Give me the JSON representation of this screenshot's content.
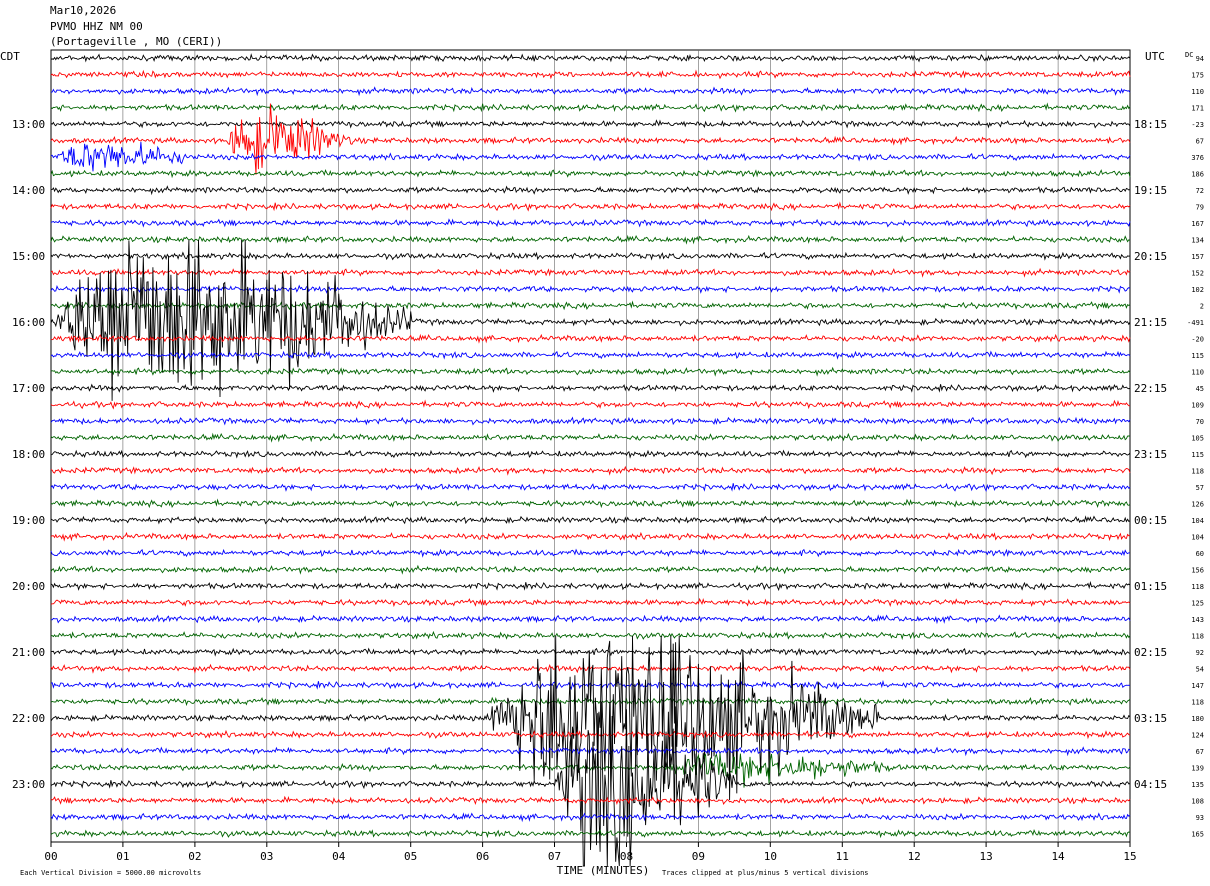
{
  "header": {
    "date": "Mar10,2026",
    "station": "PVMO HHZ NM 00",
    "location": "(Portageville , MO (CERI))"
  },
  "chart_data": {
    "type": "line",
    "title": "PVMO HHZ NM 00",
    "left_axis_label": "CDT",
    "right_axis_label": "UTC",
    "dc_label": "DC",
    "xlabel": "TIME (MINUTES)",
    "xlim": [
      0,
      15
    ],
    "x_ticks": [
      "00",
      "01",
      "02",
      "03",
      "04",
      "05",
      "06",
      "07",
      "08",
      "09",
      "10",
      "11",
      "12",
      "13",
      "14",
      "15"
    ],
    "trace_interval_minutes": 15,
    "trace_colors": [
      "#000000",
      "#ff0000",
      "#0000ff",
      "#006400"
    ],
    "left_hour_labels": [
      "13:00",
      "14:00",
      "15:00",
      "16:00",
      "17:00",
      "18:00",
      "19:00",
      "20:00",
      "21:00",
      "22:00",
      "23:00"
    ],
    "right_hour_labels": [
      "18:15",
      "19:15",
      "20:15",
      "21:15",
      "22:15",
      "23:15",
      "00:15",
      "01:15",
      "02:15",
      "03:15",
      "04:15"
    ],
    "dc_offsets": [
      "94",
      "175",
      "110",
      "171",
      "-23",
      "67",
      "376",
      "186",
      "72",
      "79",
      "167",
      "134",
      "157",
      "152",
      "102",
      "2",
      "-491",
      "-20",
      "115",
      "110",
      "45",
      "109",
      "70",
      "105",
      "115",
      "118",
      "57",
      "126",
      "104",
      "104",
      "60",
      "156",
      "118",
      "125",
      "143",
      "118",
      "92",
      "54",
      "147",
      "118",
      "180",
      "124",
      "67",
      "139",
      "135",
      "108",
      "93",
      "165"
    ],
    "footer_left": "Each Vertical Division = 5000.00 microvolts",
    "footer_right": "Traces clipped at plus/minus 5 vertical divisions",
    "events": [
      {
        "trace": 5,
        "start_min": 2.4,
        "end_min": 4.2,
        "amplitude": "large"
      },
      {
        "trace": 6,
        "start_min": 0.0,
        "end_min": 2.2,
        "amplitude": "medium"
      },
      {
        "trace": 16,
        "start_min": 0.0,
        "end_min": 5.0,
        "amplitude": "clipped"
      },
      {
        "trace": 40,
        "start_min": 6.0,
        "end_min": 11.5,
        "amplitude": "clipped"
      },
      {
        "trace": 43,
        "start_min": 8.5,
        "end_min": 12.0,
        "amplitude": "medium"
      },
      {
        "trace": 44,
        "start_min": 7.0,
        "end_min": 9.5,
        "amplitude": "clipped"
      }
    ]
  }
}
